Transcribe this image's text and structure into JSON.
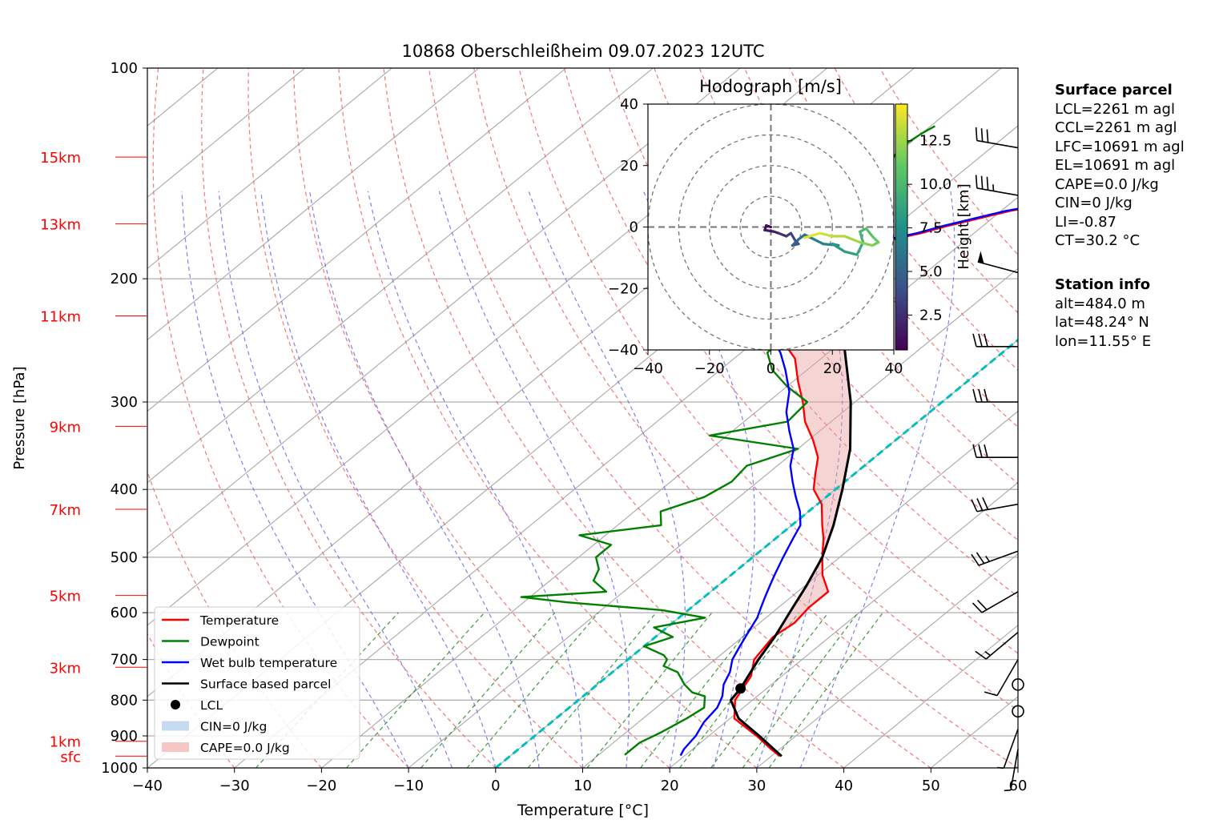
{
  "chart_data": {
    "type": "skew-t log-p sounding",
    "title": "10868 Oberschleißheim 09.07.2023 12UTC",
    "xlabel": "Temperature [°C]",
    "ylabel": "Pressure [hPa]",
    "xlim": [
      -40,
      60
    ],
    "ylim": [
      1000,
      100
    ],
    "x_ticks": [
      "−40",
      "−30",
      "−20",
      "−10",
      "0",
      "10",
      "20",
      "30",
      "40",
      "50",
      "60"
    ],
    "p_ticks": [
      "100",
      "200",
      "300",
      "400",
      "500",
      "600",
      "700",
      "800",
      "900",
      "1000"
    ],
    "height_labels": [
      {
        "label": "15km",
        "p": 134
      },
      {
        "label": "13km",
        "p": 167
      },
      {
        "label": "11km",
        "p": 226
      },
      {
        "label": "9km",
        "p": 325
      },
      {
        "label": "7km",
        "p": 427
      },
      {
        "label": "5km",
        "p": 567
      },
      {
        "label": "3km",
        "p": 718
      },
      {
        "label": "1km",
        "p": 916
      },
      {
        "label": "sfc",
        "p": 962
      }
    ],
    "height_label_color": "#ff0000",
    "grid": true,
    "legend_position": "lower-left",
    "legend": [
      {
        "label": "Temperature",
        "color": "#ff0000",
        "kind": "line"
      },
      {
        "label": "Dewpoint",
        "color": "#008000",
        "kind": "line"
      },
      {
        "label": "Wet bulb temperature",
        "color": "#0000ff",
        "kind": "line"
      },
      {
        "label": "Surface based parcel",
        "color": "#000000",
        "kind": "line"
      },
      {
        "label": "LCL",
        "color": "#000000",
        "kind": "marker"
      },
      {
        "label": "CIN=0 J/kg",
        "color": "#c6dbef",
        "kind": "patch"
      },
      {
        "label": "CAPE=0.0 J/kg",
        "color": "#f4c6c6",
        "kind": "patch"
      }
    ],
    "series": [
      {
        "name": "Temperature",
        "color": "#ff0000",
        "points": [
          [
            962,
            31.0
          ],
          [
            940,
            29.0
          ],
          [
            900,
            25.5
          ],
          [
            850,
            20.5
          ],
          [
            800,
            18.0
          ],
          [
            760,
            17.0
          ],
          [
            740,
            16.5
          ],
          [
            700,
            14.5
          ],
          [
            650,
            13.5
          ],
          [
            620,
            14.0
          ],
          [
            590,
            13.5
          ],
          [
            560,
            13.5
          ],
          [
            530,
            10.5
          ],
          [
            500,
            8.0
          ],
          [
            470,
            5.5
          ],
          [
            450,
            3.5
          ],
          [
            420,
            0.5
          ],
          [
            400,
            -2.5
          ],
          [
            380,
            -4.5
          ],
          [
            360,
            -6.5
          ],
          [
            340,
            -9.5
          ],
          [
            320,
            -13.0
          ],
          [
            300,
            -16.0
          ],
          [
            280,
            -19.5
          ],
          [
            260,
            -23.0
          ],
          [
            245,
            -27.0
          ],
          [
            240,
            -29.5
          ],
          [
            230,
            -30.0
          ],
          [
            220,
            -30.0
          ],
          [
            210,
            -30.5
          ],
          [
            200,
            -31.5
          ],
          [
            190,
            -33.0
          ],
          [
            183,
            -34.0
          ],
          [
            178,
            -30.0
          ],
          [
            172,
            -26.0
          ],
          [
            168,
            -24.0
          ],
          [
            160,
            -19.0
          ],
          [
            155,
            -14.0
          ],
          [
            150,
            -11.5
          ],
          [
            146,
            -7.5
          ],
          [
            142,
            -3.5
          ],
          [
            138,
            -1.5
          ],
          [
            135,
            0.5
          ],
          [
            130,
            1.0
          ],
          [
            124,
            1.0
          ],
          [
            121,
            1.5
          ]
        ]
      },
      {
        "name": "Dewpoint",
        "color": "#008000",
        "points": [
          [
            958,
            13.0
          ],
          [
            920,
            13.0
          ],
          [
            890,
            14.0
          ],
          [
            850,
            15.0
          ],
          [
            820,
            15.5
          ],
          [
            790,
            14.0
          ],
          [
            780,
            12.0
          ],
          [
            760,
            10.0
          ],
          [
            730,
            7.5
          ],
          [
            715,
            5.0
          ],
          [
            700,
            4.5
          ],
          [
            690,
            3.5
          ],
          [
            670,
            0.0
          ],
          [
            650,
            2.0
          ],
          [
            630,
            -1.5
          ],
          [
            610,
            3.0
          ],
          [
            595,
            -3.0
          ],
          [
            580,
            -15.0
          ],
          [
            570,
            -21.0
          ],
          [
            560,
            -12.0
          ],
          [
            540,
            -15.0
          ],
          [
            520,
            -16.0
          ],
          [
            500,
            -18.0
          ],
          [
            480,
            -18.0
          ],
          [
            465,
            -23.0
          ],
          [
            450,
            -15.0
          ],
          [
            430,
            -17.0
          ],
          [
            410,
            -14.0
          ],
          [
            390,
            -13.0
          ],
          [
            370,
            -13.5
          ],
          [
            350,
            -10.0
          ],
          [
            335,
            -22.0
          ],
          [
            320,
            -15.0
          ],
          [
            300,
            -15.5
          ],
          [
            285,
            -20.0
          ],
          [
            270,
            -24.0
          ],
          [
            255,
            -27.0
          ],
          [
            240,
            -27.0
          ],
          [
            230,
            -33.0
          ],
          [
            220,
            -25.5
          ],
          [
            210,
            -27.0
          ],
          [
            200,
            -27.5
          ],
          [
            190,
            -29.0
          ],
          [
            180,
            -30.0
          ],
          [
            170,
            -32.0
          ],
          [
            160,
            -36.0
          ],
          [
            150,
            -38.0
          ],
          [
            140,
            -39.0
          ],
          [
            130,
            -40.5
          ],
          [
            124,
            -40.0
          ],
          [
            121,
            -39.5
          ]
        ]
      },
      {
        "name": "Wet bulb temperature",
        "color": "#0000ff",
        "points": [
          [
            960,
            19.5
          ],
          [
            940,
            19.0
          ],
          [
            900,
            18.5
          ],
          [
            860,
            17.5
          ],
          [
            820,
            17.0
          ],
          [
            790,
            16.0
          ],
          [
            760,
            14.5
          ],
          [
            730,
            13.5
          ],
          [
            700,
            12.0
          ],
          [
            670,
            11.0
          ],
          [
            640,
            10.0
          ],
          [
            610,
            9.0
          ],
          [
            590,
            8.0
          ],
          [
            570,
            7.0
          ],
          [
            550,
            6.0
          ],
          [
            530,
            5.0
          ],
          [
            500,
            3.5
          ],
          [
            470,
            2.0
          ],
          [
            450,
            1.0
          ],
          [
            430,
            -1.0
          ],
          [
            410,
            -3.5
          ],
          [
            390,
            -6.0
          ],
          [
            370,
            -8.5
          ],
          [
            350,
            -10.5
          ],
          [
            330,
            -13.5
          ],
          [
            310,
            -16.5
          ],
          [
            290,
            -19.0
          ],
          [
            270,
            -22.5
          ],
          [
            255,
            -25.5
          ],
          [
            245,
            -28.0
          ],
          [
            240,
            -30.0
          ],
          [
            230,
            -30.5
          ],
          [
            220,
            -30.5
          ],
          [
            210,
            -31.0
          ],
          [
            200,
            -32.0
          ],
          [
            190,
            -33.5
          ],
          [
            183,
            -34.5
          ],
          [
            178,
            -30.5
          ],
          [
            172,
            -26.5
          ],
          [
            168,
            -24.5
          ],
          [
            160,
            -19.5
          ],
          [
            155,
            -14.5
          ],
          [
            150,
            -12.0
          ],
          [
            146,
            -8.0
          ],
          [
            142,
            -4.0
          ],
          [
            138,
            -2.0
          ],
          [
            135,
            0.0
          ],
          [
            130,
            0.5
          ],
          [
            124,
            0.5
          ],
          [
            121,
            1.0
          ]
        ]
      },
      {
        "name": "Surface based parcel",
        "color": "#000000",
        "points": [
          [
            962,
            31.2
          ],
          [
            900,
            25.8
          ],
          [
            850,
            21.0
          ],
          [
            800,
            17.5
          ],
          [
            770,
            17.0
          ],
          [
            700,
            15.0
          ],
          [
            650,
            13.7
          ],
          [
            600,
            12.0
          ],
          [
            550,
            10.2
          ],
          [
            500,
            8.0
          ],
          [
            450,
            4.8
          ],
          [
            400,
            0.8
          ],
          [
            350,
            -4.0
          ],
          [
            300,
            -10.5
          ],
          [
            250,
            -19.0
          ],
          [
            220,
            -25.0
          ],
          [
            200,
            -29.5
          ],
          [
            180,
            -34.0
          ],
          [
            160,
            -38.8
          ],
          [
            140,
            -43.8
          ],
          [
            121,
            -50.0
          ]
        ]
      }
    ],
    "lcl": {
      "p": 770,
      "t": 17.0
    },
    "freezing_isotherm": {
      "t": 0,
      "color": "#00bfbf"
    },
    "hodograph": {
      "title": "Hodograph [m/s]",
      "xlim": [
        -40,
        40
      ],
      "ylim": [
        -40,
        40
      ],
      "ticks": [
        "−40",
        "−20",
        "0",
        "20",
        "40"
      ],
      "ring_radii": [
        10,
        20,
        30,
        40
      ],
      "colorbar_label": "Height [km]",
      "colorbar_ticks": [
        "2.5",
        "5.0",
        "7.5",
        "10.0",
        "12.5"
      ],
      "colorbar_range": [
        0.5,
        14.6
      ],
      "points": [
        [
          0.0,
          0.0,
          0.5
        ],
        [
          -1.5,
          0.5,
          1.0
        ],
        [
          -2.0,
          -1.0,
          1.5
        ],
        [
          1.0,
          -1.5,
          2.0
        ],
        [
          2.5,
          -2.0,
          2.5
        ],
        [
          5.0,
          -3.0,
          3.0
        ],
        [
          6.5,
          -2.0,
          3.5
        ],
        [
          8.0,
          -4.5,
          4.0
        ],
        [
          9.0,
          -5.5,
          4.5
        ],
        [
          7.0,
          -6.0,
          5.0
        ],
        [
          9.0,
          -4.0,
          5.5
        ],
        [
          11.0,
          -2.5,
          6.0
        ],
        [
          14.0,
          -4.0,
          6.5
        ],
        [
          17.0,
          -5.5,
          7.0
        ],
        [
          22.0,
          -6.0,
          7.5
        ],
        [
          20.0,
          -5.5,
          8.0
        ],
        [
          24.0,
          -8.0,
          8.5
        ],
        [
          28.0,
          -9.0,
          9.0
        ],
        [
          30.0,
          -5.0,
          9.5
        ],
        [
          29.0,
          -1.5,
          10.0
        ],
        [
          31.0,
          -0.5,
          10.5
        ],
        [
          33.0,
          -3.0,
          11.0
        ],
        [
          35.0,
          -5.0,
          11.5
        ],
        [
          33.0,
          -6.0,
          12.0
        ],
        [
          29.0,
          -5.0,
          12.5
        ],
        [
          24.0,
          -3.0,
          13.0
        ],
        [
          20.0,
          -3.0,
          13.5
        ],
        [
          16.0,
          -2.0,
          14.0
        ],
        [
          11.0,
          -3.5,
          14.5
        ]
      ]
    },
    "wind_barbs": [
      {
        "p": 130,
        "speed_kt": 30,
        "dir": 280
      },
      {
        "p": 152,
        "speed_kt": 35,
        "dir": 280
      },
      {
        "p": 196,
        "speed_kt": 50,
        "dir": 285
      },
      {
        "p": 250,
        "speed_kt": 30,
        "dir": 270
      },
      {
        "p": 300,
        "speed_kt": 30,
        "dir": 270
      },
      {
        "p": 360,
        "speed_kt": 30,
        "dir": 270
      },
      {
        "p": 420,
        "speed_kt": 30,
        "dir": 260
      },
      {
        "p": 490,
        "speed_kt": 25,
        "dir": 250
      },
      {
        "p": 560,
        "speed_kt": 20,
        "dir": 240
      },
      {
        "p": 640,
        "speed_kt": 15,
        "dir": 230
      },
      {
        "p": 700,
        "speed_kt": 10,
        "dir": 210
      },
      {
        "p": 760,
        "speed_kt": 0,
        "dir": 0
      },
      {
        "p": 830,
        "speed_kt": 0,
        "dir": 0
      },
      {
        "p": 880,
        "speed_kt": 5,
        "dir": 200
      },
      {
        "p": 940,
        "speed_kt": 5,
        "dir": 190
      }
    ]
  },
  "surface_parcel": {
    "header": "Surface parcel",
    "lines": [
      "LCL=2261 m agl",
      "CCL=2261 m agl",
      "LFC=10691 m agl",
      "EL=10691 m agl",
      "CAPE=0.0 J/kg",
      "CIN=0 J/kg",
      "LI=-0.87",
      "CT=30.2 °C"
    ]
  },
  "station_info": {
    "header": "Station info",
    "lines": [
      "alt=484.0 m",
      "lat=48.24° N",
      "lon=11.55° E"
    ]
  }
}
